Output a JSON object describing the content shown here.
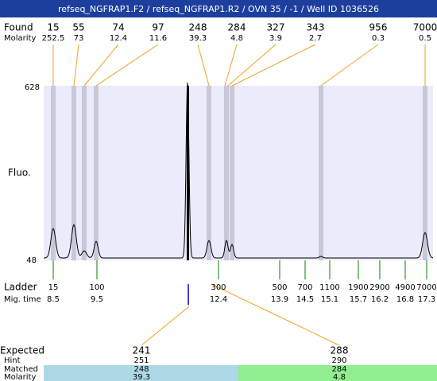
{
  "title": "refseq_NGFRAP1.F2 / refseq_NGFRAP1.R2 / OVN 35 / -1 / Well ID 1036526",
  "found": {
    "label": "Found",
    "sizes": [
      "15",
      "55",
      "74",
      "97",
      "248",
      "284",
      "327",
      "343",
      "956",
      "7000"
    ],
    "molarity_label": "Molarity",
    "molarity": [
      "252.5",
      "73",
      "12.4",
      "11.6",
      "39.3",
      "4.8",
      "3.9",
      "2.7",
      "0.3",
      "0.5"
    ]
  },
  "plot": {
    "y_label": "Fluo.",
    "y_top": "628",
    "y_bottom": "48"
  },
  "ladder": {
    "label": "Ladder",
    "sizes": [
      "15",
      "100",
      "300",
      "500",
      "700",
      "1100",
      "1900",
      "2900",
      "4900",
      "7000"
    ],
    "mig_label": "Mig. time",
    "times": [
      "8.5",
      "9.5",
      "12.4",
      "13.9",
      "14.5",
      "15.1",
      "15.7",
      "16.2",
      "16.8",
      "17.3"
    ]
  },
  "expected": {
    "label": "Expected",
    "values": [
      "241",
      "288"
    ],
    "hint_label": "Hint",
    "hint": [
      "251",
      "290"
    ],
    "matched_label": "Matched",
    "matched": [
      "248",
      "284"
    ],
    "molarity_label": "Molarity",
    "molarity": [
      "39.3",
      "4.8"
    ]
  }
}
